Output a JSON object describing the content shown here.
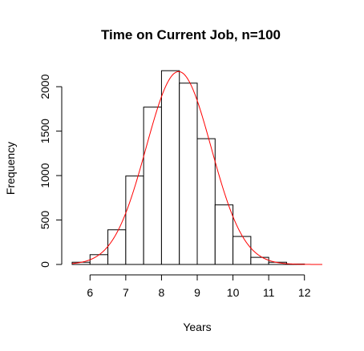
{
  "chart_data": {
    "type": "bar",
    "subtype": "histogram",
    "title": "Time on Current Job, n=100",
    "xlabel": "Years",
    "ylabel": "Frequency",
    "bin_edges": [
      5.5,
      6.0,
      6.5,
      7.0,
      7.5,
      8.0,
      8.5,
      9.0,
      9.5,
      10.0,
      10.5,
      11.0,
      11.5,
      12.0,
      12.5
    ],
    "values": [
      25,
      110,
      390,
      995,
      1770,
      2180,
      2040,
      1415,
      670,
      315,
      80,
      25,
      5,
      0
    ],
    "xlim": [
      5.5,
      12.5
    ],
    "ylim": [
      0,
      2200
    ],
    "xticks": [
      "6",
      "7",
      "8",
      "9",
      "10",
      "11",
      "12"
    ],
    "yticks": [
      "0",
      "500",
      "1000",
      "1500",
      "2000"
    ],
    "density_curve": {
      "color": "#ff0000",
      "mean": 8.48,
      "sd": 0.91,
      "peak": 2170
    },
    "bar_fill": "#ffffff",
    "bar_stroke": "#000000",
    "grid": false
  }
}
